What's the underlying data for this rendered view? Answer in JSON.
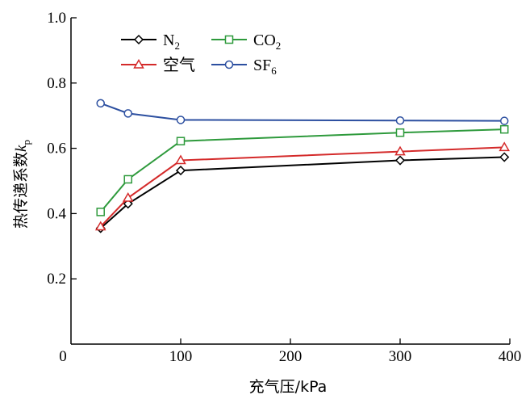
{
  "chart_data": {
    "type": "line",
    "xlabel": "充气压/kPa",
    "ylabel_main": "热传递系数",
    "ylabel_symbol": "k",
    "ylabel_subscript": "p",
    "xlim": [
      0,
      400
    ],
    "ylim": [
      0,
      1.0
    ],
    "xticks": [
      0,
      100,
      200,
      300,
      400
    ],
    "yticks": [
      0.2,
      0.4,
      0.6,
      0.8,
      1.0
    ],
    "ytick_labels": [
      "0.2",
      "0.4",
      "0.6",
      "0.8",
      "1.0"
    ],
    "grid": false,
    "legend_placement": "top-left",
    "series": [
      {
        "name": "N",
        "name_sub": "2",
        "marker": "diamond",
        "color": "#000000",
        "x": [
          27,
          52,
          100,
          300,
          395
        ],
        "y": [
          0.355,
          0.43,
          0.532,
          0.563,
          0.573
        ]
      },
      {
        "name": "CO",
        "name_sub": "2",
        "marker": "square",
        "color": "#2e9a3c",
        "x": [
          27,
          52,
          100,
          300,
          395
        ],
        "y": [
          0.405,
          0.505,
          0.622,
          0.648,
          0.658
        ]
      },
      {
        "name": "空气",
        "name_sub": "",
        "marker": "triangle",
        "color": "#d42a2a",
        "x": [
          27,
          52,
          100,
          300,
          395
        ],
        "y": [
          0.36,
          0.448,
          0.563,
          0.59,
          0.603
        ]
      },
      {
        "name": "SF",
        "name_sub": "6",
        "marker": "circle",
        "color": "#2c4fa0",
        "x": [
          27,
          52,
          100,
          300,
          395
        ],
        "y": [
          0.738,
          0.707,
          0.687,
          0.685,
          0.684
        ]
      }
    ]
  }
}
